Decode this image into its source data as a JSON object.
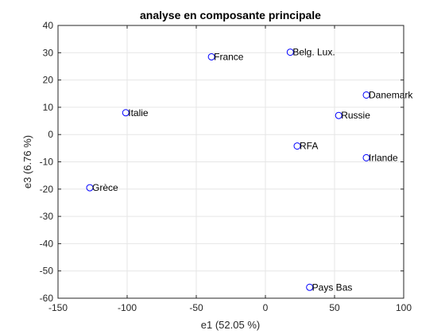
{
  "chart_data": {
    "type": "scatter",
    "title": "analyse en composante principale",
    "xlabel": "e1 (52.05 %)",
    "ylabel": "e3 (6.76 %)",
    "xlim": [
      -150,
      100
    ],
    "ylim": [
      -60,
      40
    ],
    "xticks": [
      -150,
      -100,
      -50,
      0,
      50,
      100
    ],
    "yticks": [
      -60,
      -50,
      -40,
      -30,
      -20,
      -10,
      0,
      10,
      20,
      30,
      40
    ],
    "grid": true,
    "marker": "circle",
    "marker_color": "#0000ff",
    "points": [
      {
        "label": "France",
        "x": -39,
        "y": 28.5
      },
      {
        "label": "Belg. Lux.",
        "x": 18,
        "y": 30.2
      },
      {
        "label": "Danemark",
        "x": 73,
        "y": 14.5
      },
      {
        "label": "Italie",
        "x": -101,
        "y": 8
      },
      {
        "label": "Russie",
        "x": 53,
        "y": 7
      },
      {
        "label": "RFA",
        "x": 23,
        "y": -4.2
      },
      {
        "label": "Irlande",
        "x": 73,
        "y": -8.5
      },
      {
        "label": "Grèce",
        "x": -127,
        "y": -19.5
      },
      {
        "label": "Pays Bas",
        "x": 32,
        "y": -56
      }
    ]
  }
}
